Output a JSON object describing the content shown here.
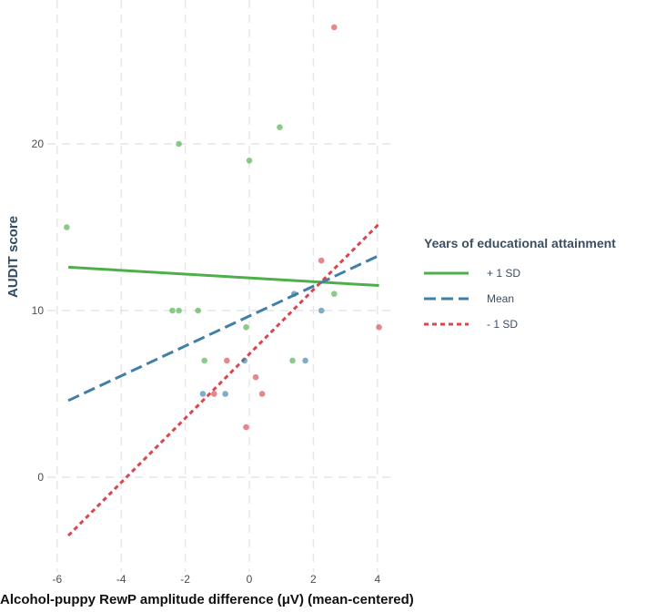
{
  "chart_data": {
    "type": "scatter",
    "title": "",
    "xlabel": "Alcohol-puppy RewP amplitude difference (μV) (mean-centered)",
    "ylabel": "AUDIT score",
    "xlim": [
      -6.2,
      4.4
    ],
    "ylim": [
      -5.5,
      28
    ],
    "xticks": [
      -6,
      -4,
      -2,
      0,
      2,
      4
    ],
    "yticks": [
      0,
      10,
      20
    ],
    "xtick_labels": [
      "-6",
      "-4",
      "-2",
      "0",
      "2",
      "4"
    ],
    "ytick_labels": [
      "0",
      "10",
      "20"
    ],
    "grid": true,
    "legend": {
      "title": "Years of educational attainment",
      "position": "right",
      "entries": [
        "+ 1 SD",
        "Mean",
        "- 1 SD"
      ]
    },
    "series": [
      {
        "name": "+ 1 SD",
        "color": "#4daf4a",
        "dash": "solid",
        "line": [
          [
            -5.65,
            12.6
          ],
          [
            4.05,
            11.5
          ]
        ],
        "points": [
          [
            -5.7,
            15
          ],
          [
            -2.2,
            20
          ],
          [
            0.0,
            19
          ],
          [
            0.95,
            21
          ],
          [
            -2.4,
            10
          ],
          [
            -2.2,
            10
          ],
          [
            -1.6,
            10
          ],
          [
            -1.4,
            7
          ],
          [
            1.35,
            7
          ],
          [
            2.65,
            11
          ],
          [
            -0.1,
            9
          ]
        ]
      },
      {
        "name": "Mean",
        "color": "#3f7fa8",
        "dash": "dashed",
        "line": [
          [
            -5.65,
            4.6
          ],
          [
            4.05,
            13.3
          ]
        ],
        "points": [
          [
            -1.45,
            5
          ],
          [
            -0.75,
            5
          ],
          [
            -0.15,
            7
          ],
          [
            1.75,
            7
          ],
          [
            1.4,
            11
          ],
          [
            2.25,
            10
          ]
        ]
      },
      {
        "name": "- 1 SD",
        "color": "#d9474e",
        "dash": "dotted",
        "line": [
          [
            -5.65,
            -3.5
          ],
          [
            4.05,
            15.2
          ]
        ],
        "points": [
          [
            2.65,
            27
          ],
          [
            2.25,
            13
          ],
          [
            4.05,
            9
          ],
          [
            -0.7,
            7
          ],
          [
            0.2,
            6
          ],
          [
            0.4,
            5
          ],
          [
            -1.1,
            5
          ],
          [
            -0.1,
            3
          ]
        ]
      }
    ]
  }
}
